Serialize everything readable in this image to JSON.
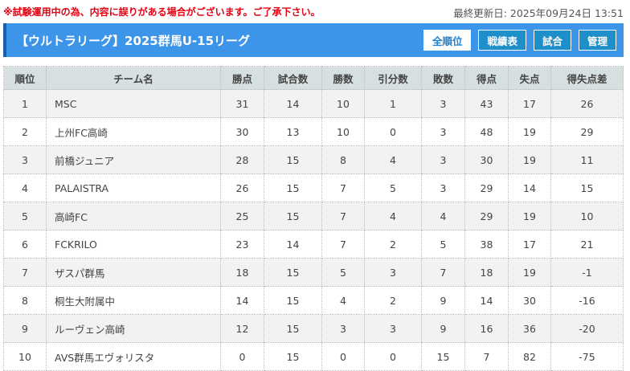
{
  "notice": "※試験運用中の為、内容に誤りがある場合がございます。ご了承下さい。",
  "updated": "最終更新日: 2025年09月24日 13:51",
  "title": "【ウルトラリーグ】2025群馬U-15リーグ",
  "buttons": [
    "全順位",
    "戦績表",
    "試合",
    "管理"
  ],
  "colors": {
    "accent": "#3d95ea",
    "notice": "#e60012"
  },
  "columns": [
    "順位",
    "チーム名",
    "勝点",
    "試合数",
    "勝数",
    "引分数",
    "敗数",
    "得点",
    "失点",
    "得失点差"
  ],
  "rows": [
    [
      "1",
      "MSC",
      "31",
      "14",
      "10",
      "1",
      "3",
      "43",
      "17",
      "26"
    ],
    [
      "2",
      "上州FC高崎",
      "30",
      "13",
      "10",
      "0",
      "3",
      "48",
      "19",
      "29"
    ],
    [
      "3",
      "前橋ジュニア",
      "28",
      "15",
      "8",
      "4",
      "3",
      "30",
      "19",
      "11"
    ],
    [
      "4",
      "PALAISTRA",
      "26",
      "15",
      "7",
      "5",
      "3",
      "29",
      "14",
      "15"
    ],
    [
      "5",
      "高崎FC",
      "25",
      "15",
      "7",
      "4",
      "4",
      "29",
      "19",
      "10"
    ],
    [
      "6",
      "FCKRILO",
      "23",
      "14",
      "7",
      "2",
      "5",
      "38",
      "17",
      "21"
    ],
    [
      "7",
      "ザスパ群馬",
      "18",
      "15",
      "5",
      "3",
      "7",
      "18",
      "19",
      "-1"
    ],
    [
      "8",
      "桐生大附属中",
      "14",
      "15",
      "4",
      "2",
      "9",
      "14",
      "30",
      "-16"
    ],
    [
      "9",
      "ルーヴェン高崎",
      "12",
      "15",
      "3",
      "3",
      "9",
      "16",
      "36",
      "-20"
    ],
    [
      "10",
      "AVS群馬エヴォリスタ",
      "0",
      "15",
      "0",
      "0",
      "15",
      "7",
      "82",
      "-75"
    ]
  ]
}
